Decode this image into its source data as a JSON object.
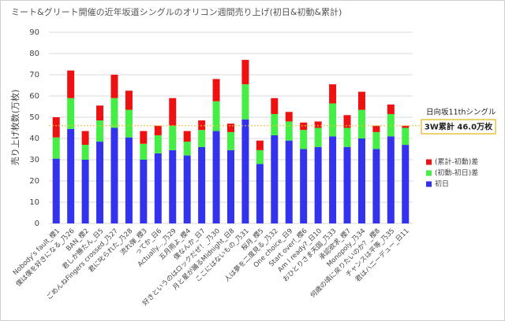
{
  "chart_data": {
    "type": "stacked_bar",
    "title": "ミート&グリート開催の近年坂道シングルのオリコン週間売り上げ(初日&初動&累計)",
    "y_label": "売り上げ枚数(万枚)",
    "categories": [
      "Nobody's fault_櫻1",
      "僕は僕を好きになる_乃26",
      "BAN_櫻2",
      "君しか勝たん_日5",
      "ごめんねFingers crossed_乃27",
      "君に叱られた_乃28",
      "流れ弾_櫻3",
      "ってか_日6",
      "Actually..._乃29",
      "五月雨よ_櫻4",
      "僕なんか_日7",
      "好きというのはロックだぜ！_乃30",
      "月と星が踊るMidnight_日8",
      "ここにはないもの_乃31",
      "桜月_櫻5",
      "人は夢を二度見る_乃32",
      "One choice_日9",
      "Start over!_櫻6",
      "Am I ready?_日10",
      "おひとりさま天国_乃33",
      "承認欲求_櫻7",
      "Monopoly_乃34",
      "何歳の頃に戻りたいのか？_櫻8",
      "チャンスは平等_乃35",
      "君はハニーデュー_日11"
    ],
    "series": [
      {
        "name": "初日",
        "color": "#3333ee",
        "values": [
          30.5,
          44.5,
          30,
          38.5,
          45,
          40.5,
          30,
          33,
          34.5,
          32,
          36,
          43.5,
          34.5,
          49,
          28,
          41.5,
          39,
          35,
          36,
          41,
          36,
          40,
          35,
          41,
          37
        ]
      },
      {
        "name": "(初動-初日)差",
        "color": "#44ee44",
        "values": [
          10,
          14.5,
          7,
          10,
          14,
          13,
          7.5,
          8.5,
          11.5,
          6.5,
          8,
          14,
          8.5,
          16.5,
          6.5,
          10,
          9,
          9,
          9,
          15.5,
          9,
          13.5,
          8,
          10.5,
          8
        ]
      },
      {
        "name": "(累計-初動)差",
        "color": "#ee1111",
        "values": [
          9.5,
          13,
          6.5,
          7,
          11,
          9,
          6,
          4.5,
          13,
          5,
          4.5,
          10.5,
          4,
          11.5,
          4.5,
          7.5,
          4.5,
          3.5,
          3,
          9,
          6,
          8.5,
          3,
          4.5,
          1
        ]
      }
    ],
    "ylim": [
      0,
      90
    ],
    "yticks": [
      0,
      10,
      20,
      30,
      40,
      50,
      60,
      70,
      80,
      90
    ],
    "grid": true,
    "reference_line": {
      "value": 46.0,
      "color": "#e8c440",
      "label": "日向坂11thシングル",
      "box_label": "3W累計 46.0万枚"
    }
  }
}
